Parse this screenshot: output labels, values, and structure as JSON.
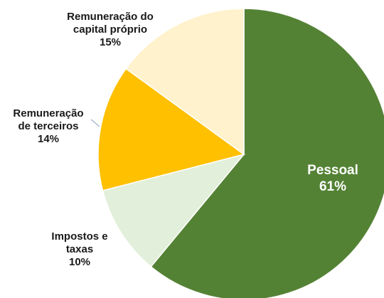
{
  "chart_data": {
    "type": "pie",
    "categories": [
      "Pessoal",
      "Impostos e taxas",
      "Remuneração de terceiros",
      "Remuneração do capital próprio"
    ],
    "values": [
      61,
      10,
      14,
      15
    ],
    "value_labels": [
      "61%",
      "10%",
      "14%",
      "15%"
    ],
    "colors": [
      "#548235",
      "#e2efda",
      "#ffc000",
      "#fff2cc"
    ]
  }
}
